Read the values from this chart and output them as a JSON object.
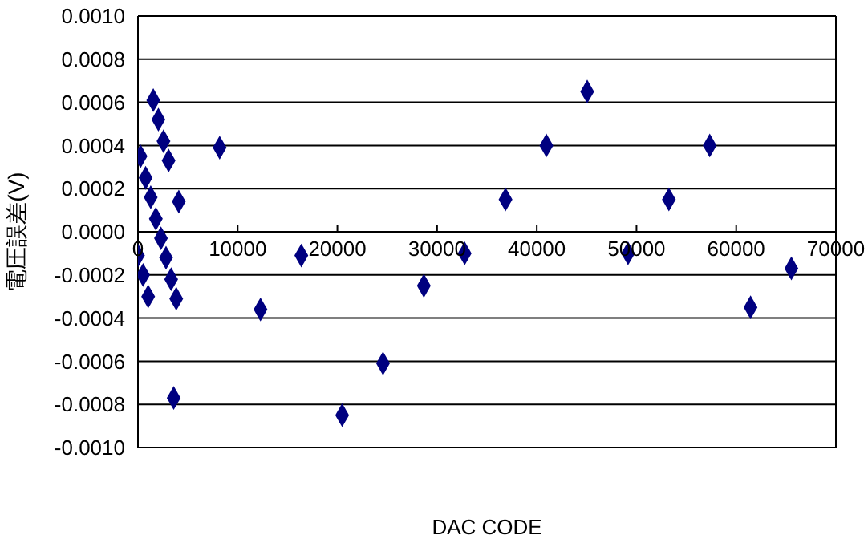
{
  "chart_data": {
    "type": "scatter",
    "xlabel": "DAC  CODE",
    "ylabel": "電圧誤差(V)",
    "x": [
      0,
      256,
      512,
      768,
      1024,
      1280,
      1536,
      1792,
      2048,
      2304,
      2560,
      2816,
      3072,
      3328,
      3584,
      3840,
      4096,
      8192,
      12288,
      16384,
      20480,
      24576,
      28672,
      32768,
      36864,
      40960,
      45056,
      49152,
      53248,
      57344,
      61440,
      65535
    ],
    "series": [
      {
        "color": "#000080",
        "values": [
          -0.00011,
          0.00035,
          -0.0002,
          0.00025,
          -0.0003,
          0.00016,
          0.00061,
          6e-05,
          0.00052,
          -3e-05,
          0.00042,
          -0.00012,
          0.00033,
          -0.00022,
          -0.00077,
          -0.00031,
          0.00014,
          0.00039,
          -0.00036,
          -0.00011,
          -0.00085,
          -0.00061,
          -0.00025,
          -0.0001,
          0.00015,
          0.0004,
          0.00065,
          -0.0001,
          0.00015,
          0.0004,
          -0.00035,
          -0.00017
        ]
      }
    ],
    "xlim": [
      0,
      70000
    ],
    "xticks": [
      0,
      10000,
      20000,
      30000,
      40000,
      50000,
      60000,
      70000
    ],
    "ylim": [
      -0.001,
      0.001
    ],
    "yticks": [
      {
        "value": -0.001,
        "label": "-0.0010"
      },
      {
        "value": -0.0008,
        "label": "-0.0008"
      },
      {
        "value": -0.0006,
        "label": "-0.0006"
      },
      {
        "value": -0.0004,
        "label": "-0.0004"
      },
      {
        "value": -0.0002,
        "label": "-0.0002"
      },
      {
        "value": 0,
        "label": "0.0000"
      },
      {
        "value": 0.0002,
        "label": "0.0002"
      },
      {
        "value": 0.0004,
        "label": "0.0004"
      },
      {
        "value": 0.0006,
        "label": "0.0006"
      },
      {
        "value": 0.0008,
        "label": "0.0008"
      },
      {
        "value": 0.001,
        "label": "0.0010"
      }
    ],
    "grid": "y",
    "marker": "diamond",
    "legend": false
  }
}
